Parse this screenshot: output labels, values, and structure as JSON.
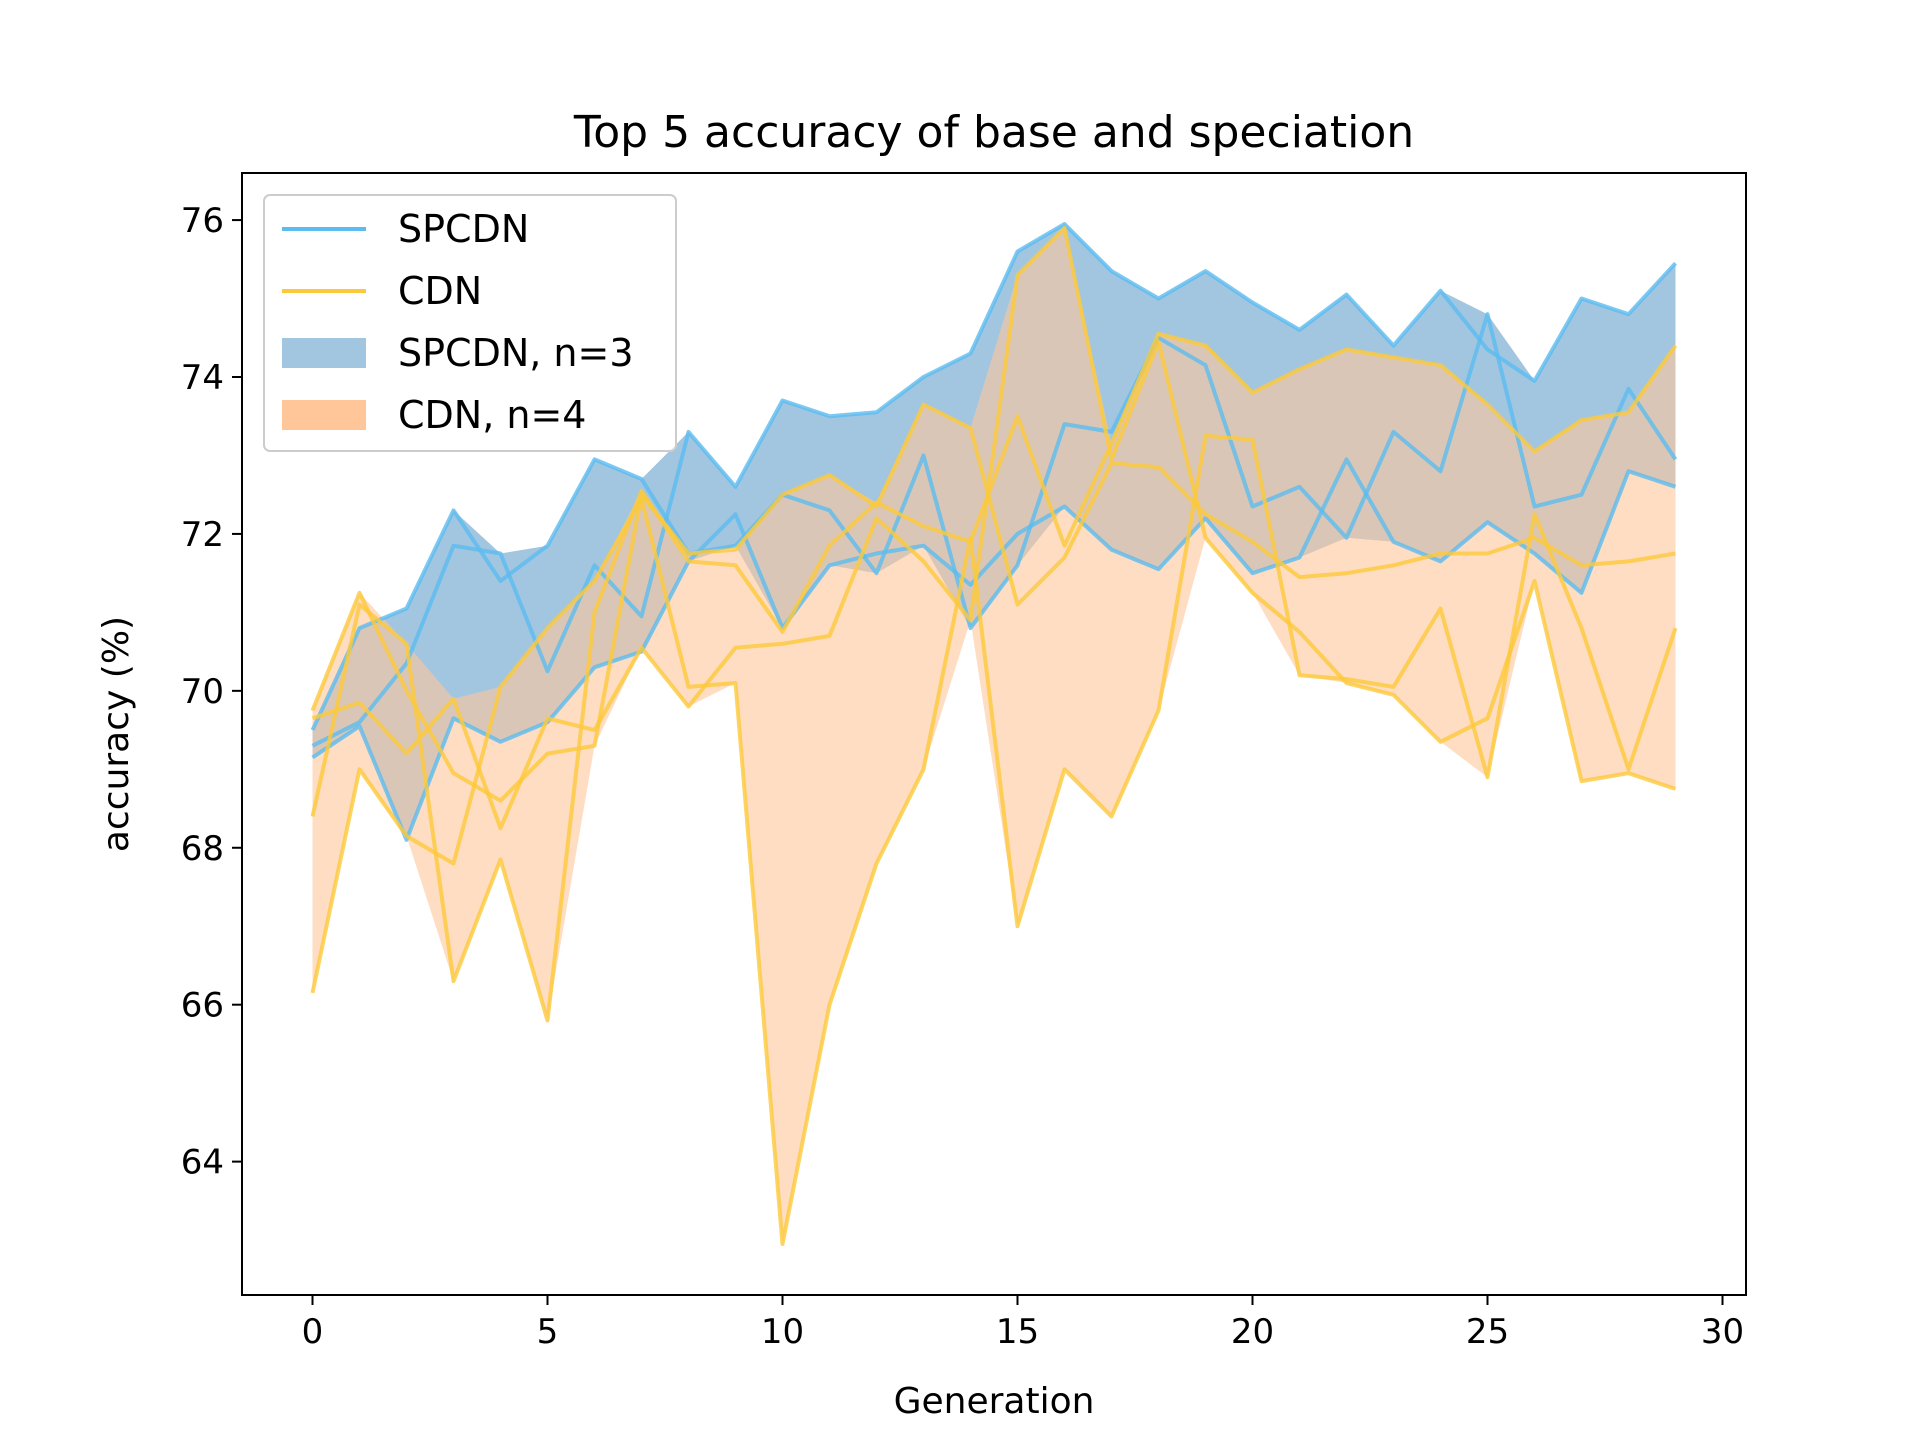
{
  "chart_data": {
    "type": "line",
    "title": "Top 5 accuracy of base and speciation",
    "xlabel": "Generation",
    "ylabel": "accuracy (%)",
    "xlim": [
      -1.5,
      30.5
    ],
    "ylim": [
      62.3,
      76.6
    ],
    "xticks": [
      0,
      5,
      10,
      15,
      20,
      25,
      30
    ],
    "yticks": [
      64,
      66,
      68,
      70,
      72,
      74,
      76
    ],
    "grid": false,
    "legend_position": "upper-left",
    "legend": [
      {
        "label": "SPCDN",
        "kind": "line",
        "color": "#5bbcf0"
      },
      {
        "label": "CDN",
        "kind": "line",
        "color": "#fcc93a"
      },
      {
        "label": "SPCDN, n=3",
        "kind": "band",
        "color": "#a3c6e0"
      },
      {
        "label": "CDN, n=4",
        "kind": "band",
        "color": "#ffc69a"
      }
    ],
    "x": [
      0,
      1,
      2,
      3,
      4,
      5,
      6,
      7,
      8,
      9,
      10,
      11,
      12,
      13,
      14,
      15,
      16,
      17,
      18,
      19,
      20,
      21,
      22,
      23,
      24,
      25,
      26,
      27,
      28,
      29
    ],
    "series": [
      {
        "group": "SPCDN",
        "color": "#5bbcf0",
        "values": [
          69.5,
          70.8,
          71.05,
          72.3,
          71.4,
          71.85,
          72.95,
          72.7,
          71.75,
          71.85,
          72.5,
          72.3,
          71.5,
          73.0,
          70.8,
          71.6,
          73.4,
          73.3,
          74.5,
          74.15,
          72.35,
          72.6,
          71.95,
          73.3,
          72.8,
          74.8,
          72.35,
          72.5,
          73.85,
          72.95
        ]
      },
      {
        "group": "SPCDN",
        "color": "#5bbcf0",
        "values": [
          69.3,
          69.6,
          70.35,
          71.85,
          71.75,
          70.25,
          71.6,
          70.95,
          73.3,
          72.6,
          73.7,
          73.5,
          73.55,
          74.0,
          74.3,
          75.6,
          75.95,
          75.35,
          75.0,
          75.35,
          74.95,
          74.6,
          75.05,
          74.4,
          75.1,
          74.35,
          73.95,
          75.0,
          74.8,
          75.45
        ]
      },
      {
        "group": "SPCDN",
        "color": "#5bbcf0",
        "values": [
          69.15,
          69.55,
          68.1,
          69.65,
          69.35,
          69.6,
          70.3,
          70.5,
          71.65,
          72.25,
          70.8,
          71.6,
          71.75,
          71.85,
          71.35,
          72.0,
          72.35,
          71.8,
          71.55,
          72.2,
          71.5,
          71.7,
          72.95,
          71.9,
          71.65,
          72.15,
          71.75,
          71.25,
          72.8,
          72.6
        ]
      },
      {
        "group": "CDN",
        "color": "#fcc93a",
        "values": [
          69.75,
          71.25,
          70.0,
          68.95,
          68.6,
          69.2,
          69.3,
          72.5,
          71.75,
          71.8,
          72.5,
          72.75,
          72.35,
          73.65,
          73.35,
          71.1,
          71.7,
          72.9,
          72.85,
          72.25,
          71.9,
          71.45,
          71.5,
          71.6,
          71.75,
          71.75,
          71.95,
          71.6,
          71.65,
          71.75
        ]
      },
      {
        "group": "CDN",
        "color": "#fcc93a",
        "values": [
          68.4,
          71.1,
          70.6,
          66.3,
          67.85,
          65.8,
          71.0,
          72.55,
          71.65,
          71.6,
          70.75,
          71.85,
          72.4,
          72.1,
          71.9,
          73.5,
          71.85,
          73.15,
          74.55,
          74.4,
          73.8,
          74.1,
          74.35,
          74.25,
          74.15,
          73.65,
          73.05,
          73.45,
          73.55,
          74.4
        ]
      },
      {
        "group": "CDN",
        "color": "#fcc93a",
        "values": [
          66.15,
          69.0,
          68.15,
          67.8,
          70.05,
          70.8,
          71.4,
          72.45,
          70.05,
          70.1,
          62.95,
          66.0,
          67.8,
          69.0,
          71.95,
          67.0,
          69.0,
          68.4,
          69.75,
          73.25,
          73.2,
          70.2,
          70.15,
          70.05,
          71.05,
          68.9,
          72.25,
          70.8,
          69.0,
          70.8
        ]
      },
      {
        "group": "CDN",
        "color": "#fcc93a",
        "values": [
          69.65,
          69.85,
          69.2,
          69.9,
          68.25,
          69.65,
          69.5,
          70.55,
          69.8,
          70.55,
          70.6,
          70.7,
          72.2,
          71.65,
          70.9,
          75.3,
          75.9,
          72.95,
          74.45,
          71.95,
          71.25,
          70.75,
          70.1,
          69.95,
          69.35,
          69.65,
          71.4,
          68.85,
          68.95,
          68.75
        ]
      }
    ],
    "bands": [
      {
        "name": "SPCDN, n=3",
        "color": "#a3c6e0",
        "lower": [
          69.15,
          69.55,
          68.1,
          69.65,
          69.35,
          69.6,
          70.3,
          70.5,
          71.65,
          71.85,
          70.8,
          71.6,
          71.5,
          71.85,
          70.8,
          71.6,
          72.35,
          71.8,
          71.55,
          72.2,
          71.5,
          71.7,
          71.95,
          71.9,
          71.65,
          72.15,
          71.75,
          71.25,
          72.8,
          72.6
        ],
        "upper": [
          69.5,
          70.8,
          71.05,
          72.3,
          71.75,
          71.85,
          72.95,
          72.7,
          73.3,
          72.6,
          73.7,
          73.5,
          73.55,
          74.0,
          74.3,
          75.6,
          75.95,
          75.35,
          75.0,
          75.35,
          74.95,
          74.6,
          75.05,
          74.4,
          75.1,
          74.8,
          73.95,
          75.0,
          74.8,
          75.45
        ]
      },
      {
        "name": "CDN, n=4",
        "color": "#ffc69a",
        "lower": [
          66.15,
          69.0,
          68.15,
          66.3,
          67.85,
          65.8,
          69.3,
          70.55,
          69.8,
          70.1,
          62.95,
          66.0,
          67.8,
          69.0,
          70.9,
          67.0,
          69.0,
          68.4,
          69.75,
          71.95,
          71.25,
          70.2,
          70.1,
          69.95,
          69.35,
          68.9,
          71.4,
          68.85,
          68.95,
          68.75
        ],
        "upper": [
          69.75,
          71.25,
          70.6,
          69.9,
          70.05,
          70.8,
          71.4,
          72.55,
          71.75,
          71.8,
          72.5,
          72.75,
          72.4,
          73.65,
          73.35,
          75.3,
          75.9,
          73.15,
          74.55,
          74.4,
          73.8,
          74.1,
          74.35,
          74.25,
          74.15,
          73.65,
          73.05,
          73.45,
          73.55,
          74.4
        ]
      }
    ]
  }
}
